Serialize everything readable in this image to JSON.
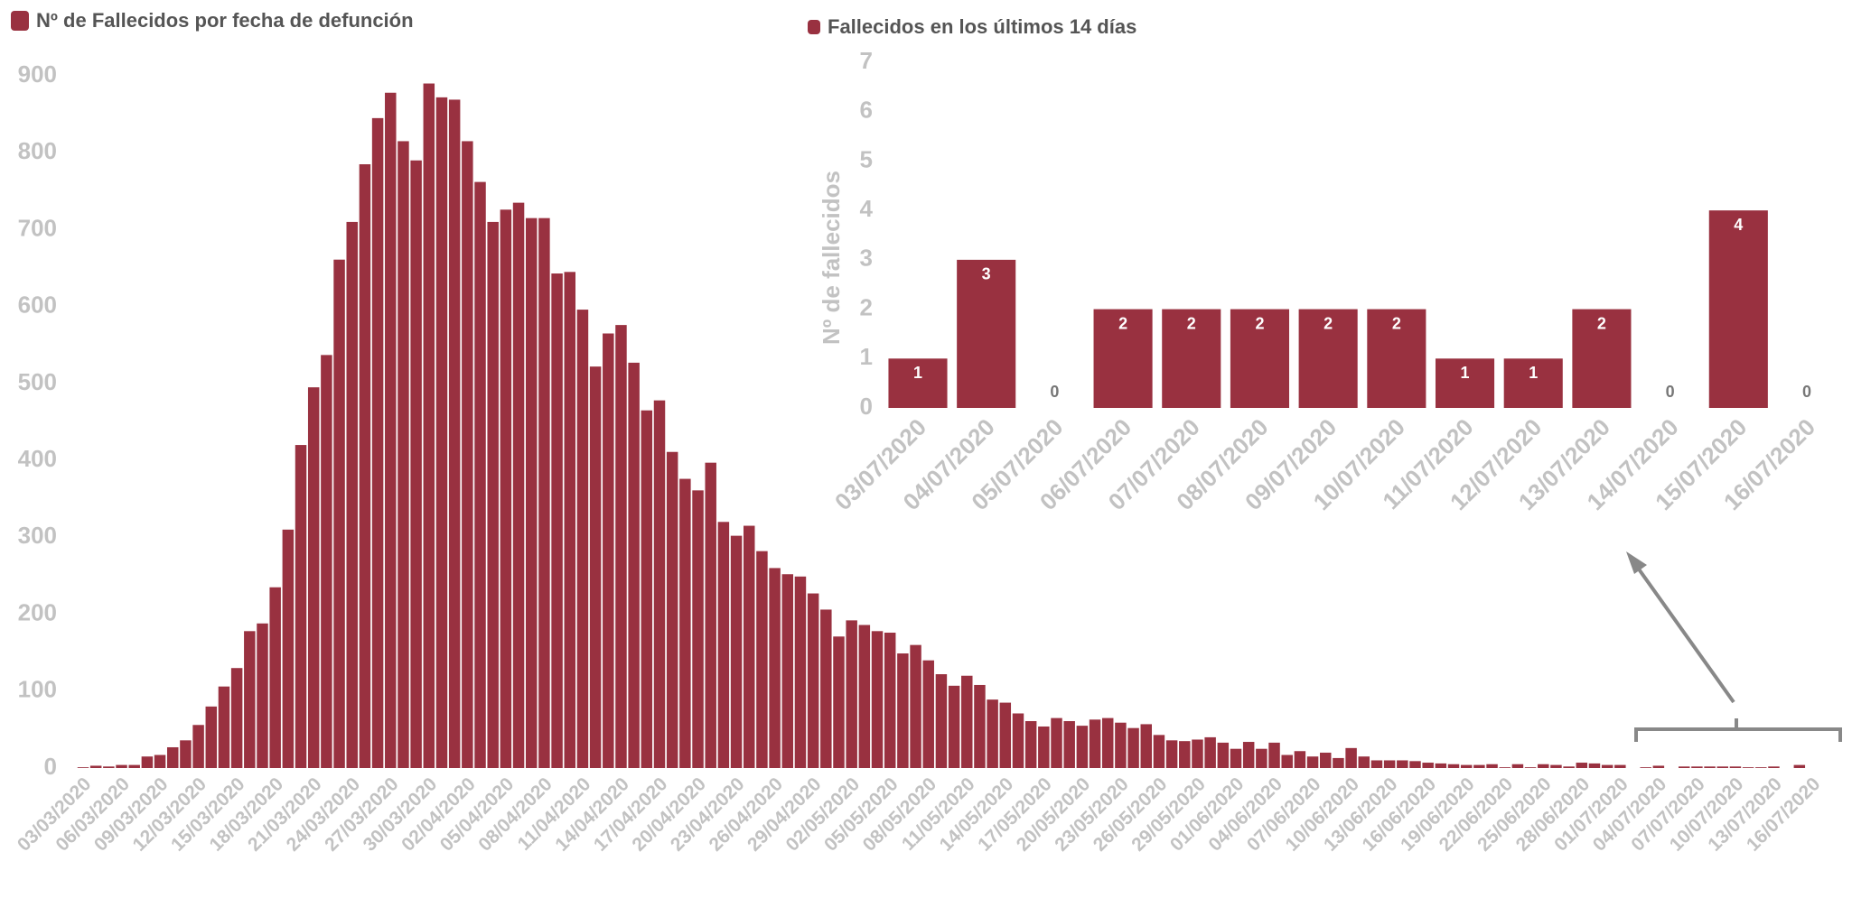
{
  "chart_data": [
    {
      "type": "bar",
      "title": "Nº de Fallecidos por fecha de defunción",
      "color": "#993140",
      "categories": [
        "03/03/2020",
        null,
        null,
        "06/03/2020",
        null,
        null,
        "09/03/2020",
        null,
        null,
        "12/03/2020",
        null,
        null,
        "15/03/2020",
        null,
        null,
        "18/03/2020",
        null,
        null,
        "21/03/2020",
        null,
        null,
        "24/03/2020",
        null,
        null,
        "27/03/2020",
        null,
        null,
        "30/03/2020",
        null,
        null,
        "02/04/2020",
        null,
        null,
        "05/04/2020",
        null,
        null,
        "08/04/2020",
        null,
        null,
        "11/04/2020",
        null,
        null,
        "14/04/2020",
        null,
        null,
        "17/04/2020",
        null,
        null,
        "20/04/2020",
        null,
        null,
        "23/04/2020",
        null,
        null,
        "26/04/2020",
        null,
        null,
        "29/04/2020",
        null,
        null,
        "02/05/2020",
        null,
        null,
        "05/05/2020",
        null,
        null,
        "08/05/2020",
        null,
        null,
        "11/05/2020",
        null,
        null,
        "14/05/2020",
        null,
        null,
        "17/05/2020",
        null,
        null,
        "20/05/2020",
        null,
        null,
        "23/05/2020",
        null,
        null,
        "26/05/2020",
        null,
        null,
        "29/05/2020",
        null,
        null,
        "01/06/2020",
        null,
        null,
        "04/06/2020",
        null,
        null,
        "07/06/2020",
        null,
        null,
        "10/06/2020",
        null,
        null,
        "13/06/2020",
        null,
        null,
        "16/06/2020",
        null,
        null,
        "19/06/2020",
        null,
        null,
        "22/06/2020",
        null,
        null,
        "25/06/2020",
        null,
        null,
        "28/06/2020",
        null,
        null,
        "01/07/2020",
        null,
        null,
        "04/07/2020",
        null,
        null,
        "07/07/2020",
        null,
        null,
        "10/07/2020",
        null,
        null,
        "13/07/2020",
        null,
        null,
        "16/07/2020"
      ],
      "values": [
        1,
        3,
        2,
        4,
        4,
        15,
        17,
        27,
        36,
        56,
        80,
        106,
        130,
        178,
        188,
        235,
        310,
        420,
        495,
        537,
        661,
        710,
        785,
        845,
        878,
        815,
        790,
        890,
        872,
        869,
        815,
        762,
        710,
        726,
        735,
        715,
        715,
        643,
        645,
        596,
        522,
        565,
        576,
        527,
        465,
        478,
        411,
        376,
        361,
        397,
        320,
        302,
        315,
        282,
        260,
        252,
        249,
        227,
        206,
        171,
        192,
        186,
        178,
        176,
        149,
        160,
        140,
        122,
        107,
        120,
        108,
        89,
        85,
        71,
        61,
        54,
        65,
        61,
        55,
        63,
        65,
        59,
        52,
        57,
        43,
        36,
        35,
        37,
        40,
        33,
        25,
        34,
        25,
        33,
        17,
        22,
        15,
        20,
        13,
        26,
        15,
        10,
        10,
        10,
        9,
        7,
        6,
        5,
        4,
        4,
        5,
        1,
        5,
        1,
        5,
        4,
        2,
        7,
        6,
        4,
        4,
        0,
        1,
        3,
        0,
        2,
        2,
        2,
        2,
        2,
        1,
        1,
        2,
        0,
        4,
        0
      ],
      "ylim": [
        0,
        900
      ],
      "yticks": [
        0,
        100,
        200,
        300,
        400,
        500,
        600,
        700,
        800,
        900
      ]
    },
    {
      "type": "bar",
      "title": "Fallecidos en los últimos 14 días",
      "ylabel": "Nº de fallecidos",
      "color": "#993140",
      "categories": [
        "03/07/2020",
        "04/07/2020",
        "05/07/2020",
        "06/07/2020",
        "07/07/2020",
        "08/07/2020",
        "09/07/2020",
        "10/07/2020",
        "11/07/2020",
        "12/07/2020",
        "13/07/2020",
        "14/07/2020",
        "15/07/2020",
        "16/07/2020"
      ],
      "values": [
        1,
        3,
        0,
        2,
        2,
        2,
        2,
        2,
        1,
        1,
        2,
        0,
        4,
        0
      ],
      "ylim": [
        0,
        7
      ],
      "yticks": [
        0,
        1,
        2,
        3,
        4,
        5,
        6,
        7
      ],
      "data_labels": true
    }
  ]
}
